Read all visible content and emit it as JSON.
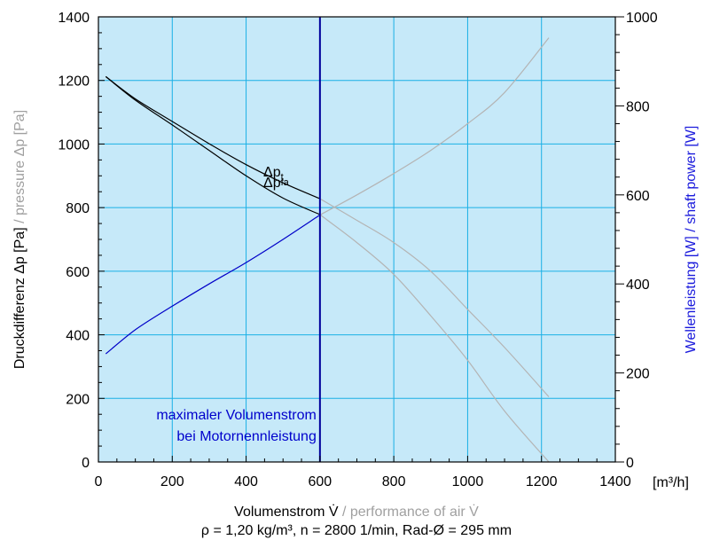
{
  "chart_data": {
    "type": "line",
    "x_axis": {
      "label_main": "Volumenstrom V̇",
      "label_secondary": " / performance of air V̇",
      "unit": "[m³/h]",
      "min": 0,
      "max": 1400,
      "ticks": [
        0,
        200,
        400,
        600,
        800,
        1000,
        1200,
        1400
      ]
    },
    "y_left_axis": {
      "label_main": "Druckdifferenz Δp [Pa]",
      "label_secondary": " / pressure Δp [Pa]",
      "min": 0,
      "max": 1400,
      "ticks": [
        0,
        200,
        400,
        600,
        800,
        1000,
        1200,
        1400
      ]
    },
    "y_right_axis": {
      "label": "Wellenleistung [W] / shaft power [W]",
      "min": 0,
      "max": 1000,
      "ticks": [
        0,
        200,
        400,
        600,
        800,
        1000
      ]
    },
    "footnote": "ρ = 1,20 kg/m³, n = 2800 1/min, Rad-Ø = 295 mm",
    "limit": {
      "x": 600,
      "label_line1": "maximaler Volumenstrom",
      "label_line2": "bei Motornennleistung"
    },
    "curve_labels": {
      "pt_main": "Δp",
      "pt_sub": "t",
      "pfa_main": "Δp",
      "pfa_sub": "fa"
    },
    "series": [
      {
        "name": "Δpt",
        "axis": "left",
        "x": [
          20,
          100,
          200,
          300,
          400,
          500,
          600
        ],
        "y": [
          1212,
          1142,
          1071,
          1001,
          935,
          878,
          828
        ]
      },
      {
        "name": "Δpfa",
        "axis": "left",
        "x": [
          20,
          100,
          200,
          300,
          400,
          500,
          600
        ],
        "y": [
          1212,
          1138,
          1060,
          980,
          900,
          830,
          778
        ]
      },
      {
        "name": "Δpt ext",
        "axis": "left",
        "extended": true,
        "x": [
          600,
          700,
          800,
          900,
          1000,
          1100,
          1220
        ],
        "y": [
          828,
          760,
          690,
          600,
          480,
          360,
          205
        ]
      },
      {
        "name": "Δpfa ext",
        "axis": "left",
        "extended": true,
        "x": [
          600,
          700,
          800,
          900,
          1000,
          1100,
          1220
        ],
        "y": [
          778,
          690,
          590,
          460,
          320,
          160,
          0
        ]
      },
      {
        "name": "shaft power",
        "axis": "right",
        "x": [
          20,
          100,
          200,
          300,
          400,
          500,
          600
        ],
        "y": [
          243,
          297,
          350,
          400,
          448,
          500,
          555
        ]
      },
      {
        "name": "shaft power ext",
        "axis": "right",
        "extended": true,
        "x": [
          600,
          700,
          800,
          900,
          1000,
          1100,
          1220
        ],
        "y": [
          555,
          600,
          648,
          700,
          760,
          830,
          953
        ]
      }
    ],
    "colors": {
      "plot_bg": "#c6e9f9",
      "grid": "#1ab0e6",
      "pressure_curve": "#000000",
      "power_curve": "#0000c8",
      "extended_curve": "#b4b4b4",
      "limit_line": "#00009c",
      "limit_text": "#0000cc",
      "right_label": "#1a1adc",
      "secondary_label": "#a0a0a0"
    }
  }
}
